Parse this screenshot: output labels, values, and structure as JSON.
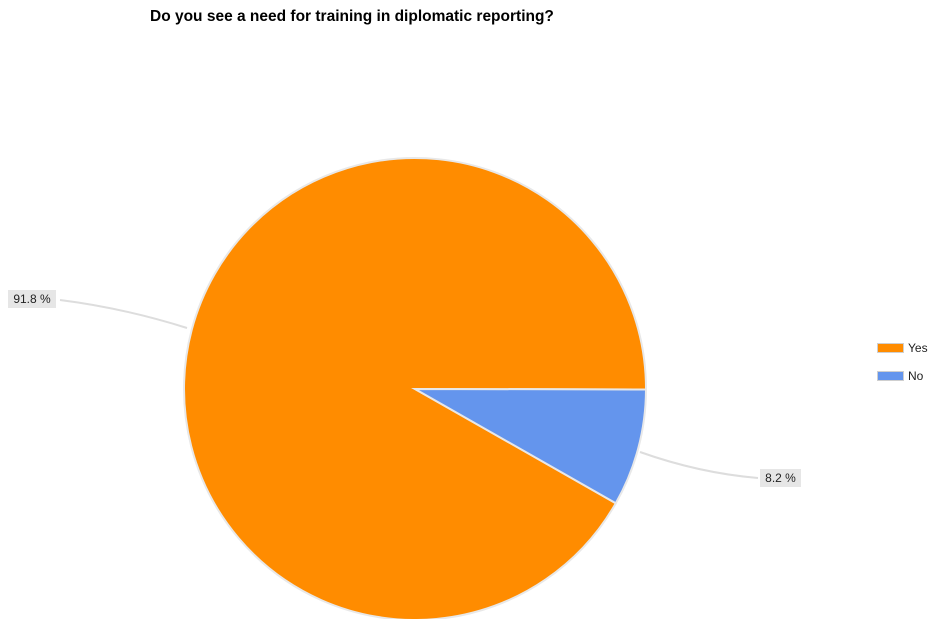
{
  "chart_data": {
    "type": "pie",
    "title": "Do you see a need for training in diplomatic reporting?",
    "categories": [
      "Yes",
      "No"
    ],
    "values": [
      91.8,
      8.2
    ],
    "data_labels": [
      "91.8 %",
      "8.2 %"
    ],
    "colors": [
      "#ff8c00",
      "#6495ed"
    ],
    "legend": {
      "position": "right",
      "items": [
        {
          "label": "Yes",
          "color": "#ff8c00"
        },
        {
          "label": "No",
          "color": "#6495ed"
        }
      ]
    }
  }
}
